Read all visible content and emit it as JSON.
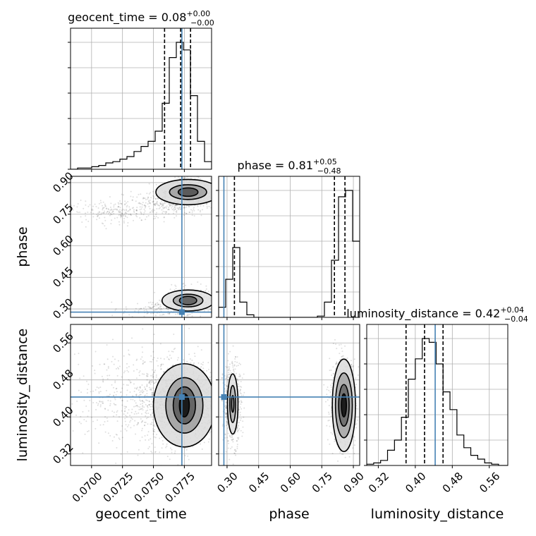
{
  "chart_data": {
    "type": "corner",
    "parameters": [
      "geocent_time",
      "phase",
      "luminosity_distance"
    ],
    "truths": [
      0.0773,
      0.285,
      0.443
    ],
    "truth_color": "#4682b4",
    "ranges": [
      [
        0.0683,
        0.0797
      ],
      [
        0.26,
        0.93
      ],
      [
        0.295,
        0.6
      ]
    ],
    "ticks": [
      [
        0.07,
        0.0725,
        0.075,
        0.0775
      ],
      [
        0.3,
        0.45,
        0.6,
        0.75,
        0.9
      ],
      [
        0.32,
        0.4,
        0.48,
        0.56
      ]
    ],
    "tick_labels": [
      [
        "0.0700",
        "0.0725",
        "0.0750",
        "0.0775"
      ],
      [
        "0.30",
        "0.45",
        "0.60",
        "0.75",
        "0.90"
      ],
      [
        "0.32",
        "0.40",
        "0.48",
        "0.56"
      ]
    ],
    "xlabels": [
      "geocent_time",
      "phase",
      "luminosity_distance"
    ],
    "ylabels": [
      "",
      "phase",
      "luminosity_distance"
    ],
    "titles": [
      {
        "name": "geocent_time",
        "value": "0.08",
        "plus": "+0.00",
        "minus": "−0.00"
      },
      {
        "name": "phase",
        "value": "0.81",
        "plus": "+0.05",
        "minus": "−0.48"
      },
      {
        "name": "luminosity_distance",
        "value": "0.42",
        "plus": "+0.04",
        "minus": "−0.04"
      }
    ],
    "quantiles": [
      [
        0.0759,
        0.0772,
        0.078
      ],
      [
        0.335,
        0.81,
        0.86
      ],
      [
        0.38,
        0.42,
        0.46
      ]
    ],
    "histograms": [
      {
        "edges": [
          0.0683,
          0.06887,
          0.06944,
          0.07001,
          0.07058,
          0.07115,
          0.07172,
          0.07229,
          0.07286,
          0.07343,
          0.074,
          0.07457,
          0.07514,
          0.07571,
          0.07628,
          0.07685,
          0.07742,
          0.07799,
          0.07856,
          0.07913,
          0.0797
        ],
        "counts": [
          0,
          1,
          1,
          2,
          3,
          5,
          6,
          8,
          10,
          14,
          18,
          22,
          30,
          52,
          88,
          100,
          94,
          58,
          22,
          6
        ]
      },
      {
        "edges": [
          0.26,
          0.2935,
          0.327,
          0.3605,
          0.394,
          0.4275,
          0.461,
          0.4945,
          0.528,
          0.5615,
          0.595,
          0.6285,
          0.662,
          0.6955,
          0.729,
          0.7625,
          0.796,
          0.8295,
          0.863,
          0.8965,
          0.93
        ],
        "counts": [
          8,
          30,
          55,
          12,
          2,
          0,
          0,
          0,
          0,
          0,
          0,
          0,
          0,
          0,
          1,
          12,
          45,
          95,
          100,
          60
        ]
      },
      {
        "edges": [
          0.295,
          0.31,
          0.325,
          0.34,
          0.355,
          0.37,
          0.385,
          0.4,
          0.415,
          0.43,
          0.445,
          0.46,
          0.475,
          0.49,
          0.505,
          0.52,
          0.535,
          0.55,
          0.565,
          0.58,
          0.6
        ],
        "counts": [
          1,
          2,
          4,
          12,
          20,
          38,
          68,
          84,
          100,
          97,
          80,
          58,
          44,
          24,
          14,
          8,
          5,
          2,
          1,
          0
        ]
      }
    ],
    "scatter_clusters": [
      {
        "panel": [
          1,
          0
        ],
        "mx": 0.0778,
        "my": 0.86,
        "sx": 0.0009,
        "sy": 0.03,
        "n": 600
      },
      {
        "panel": [
          1,
          0
        ],
        "mx": 0.0762,
        "my": 0.8,
        "sx": 0.0018,
        "sy": 0.03,
        "n": 300
      },
      {
        "panel": [
          1,
          0
        ],
        "mx": 0.072,
        "my": 0.76,
        "sx": 0.0018,
        "sy": 0.025,
        "n": 200
      },
      {
        "panel": [
          1,
          0
        ],
        "mx": 0.0778,
        "my": 0.34,
        "sx": 0.0009,
        "sy": 0.03,
        "n": 350
      },
      {
        "panel": [
          1,
          0
        ],
        "mx": 0.0755,
        "my": 0.3,
        "sx": 0.0015,
        "sy": 0.02,
        "n": 150
      },
      {
        "panel": [
          2,
          0
        ],
        "mx": 0.0773,
        "my": 0.43,
        "sx": 0.0016,
        "sy": 0.045,
        "n": 1400
      },
      {
        "panel": [
          2,
          0
        ],
        "mx": 0.073,
        "my": 0.44,
        "sx": 0.0025,
        "sy": 0.05,
        "n": 400
      },
      {
        "panel": [
          2,
          1
        ],
        "mx": 0.325,
        "my": 0.43,
        "sx": 0.022,
        "sy": 0.045,
        "n": 500
      },
      {
        "panel": [
          2,
          1
        ],
        "mx": 0.85,
        "my": 0.43,
        "sx": 0.03,
        "sy": 0.045,
        "n": 900
      }
    ],
    "contours": [
      {
        "panel": [
          1,
          0
        ],
        "cx": 0.0778,
        "cy": 0.855,
        "rx": [
          0.0008,
          0.0015,
          0.0026
        ],
        "ry": [
          0.02,
          0.035,
          0.06
        ],
        "fills": [
          0.7,
          0.38,
          0.14
        ]
      },
      {
        "panel": [
          1,
          0
        ],
        "cx": 0.0778,
        "cy": 0.34,
        "rx": [
          0.0007,
          0.0012,
          0.0021
        ],
        "ry": [
          0.02,
          0.03,
          0.05
        ],
        "fills": [
          0.65,
          0.35,
          0.12
        ]
      },
      {
        "panel": [
          2,
          0
        ],
        "cx": 0.0775,
        "cy": 0.425,
        "rx": [
          0.0004,
          0.0009,
          0.0015,
          0.0025
        ],
        "ry": [
          0.025,
          0.04,
          0.06,
          0.09
        ],
        "fills": [
          0.95,
          0.65,
          0.38,
          0.14
        ]
      },
      {
        "panel": [
          2,
          1
        ],
        "cx": 0.327,
        "cy": 0.428,
        "rx": [
          0.006,
          0.014,
          0.025
        ],
        "ry": [
          0.018,
          0.04,
          0.065
        ],
        "fills": [
          0.55,
          0.3,
          0.12
        ]
      },
      {
        "panel": [
          2,
          1
        ],
        "cx": 0.855,
        "cy": 0.425,
        "rx": [
          0.012,
          0.025,
          0.04,
          0.055
        ],
        "ry": [
          0.025,
          0.045,
          0.07,
          0.1
        ],
        "fills": [
          0.95,
          0.6,
          0.35,
          0.14
        ]
      }
    ],
    "grid": true
  }
}
